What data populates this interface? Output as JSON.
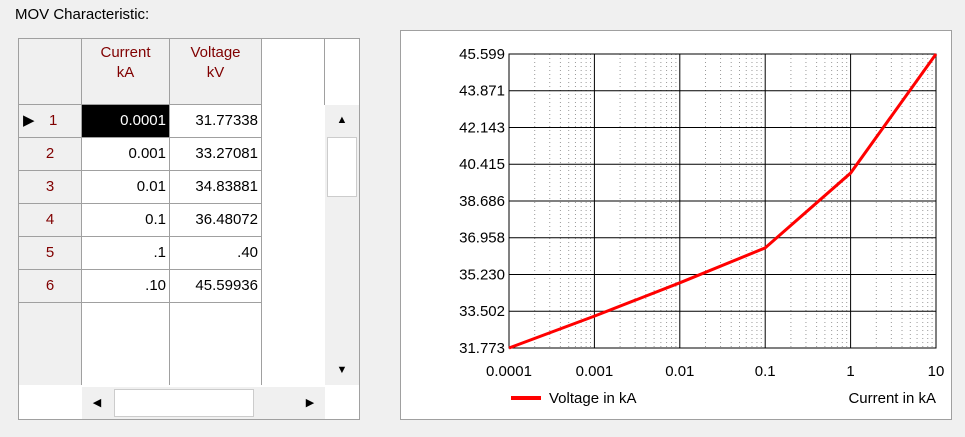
{
  "panel_title": "MOV Characteristic:",
  "table": {
    "headers": [
      [
        "Current",
        "kA"
      ],
      [
        "Voltage",
        "kV"
      ]
    ],
    "row_labels": [
      "1",
      "2",
      "3",
      "4",
      "5",
      "6"
    ],
    "rows": [
      [
        "0.0001",
        "31.77338"
      ],
      [
        "0.001",
        "33.27081"
      ],
      [
        "0.01",
        "34.83881"
      ],
      [
        "0.1",
        "36.48072"
      ],
      [
        "1.",
        "40."
      ],
      [
        "10.",
        "45.59936"
      ]
    ]
  },
  "chart_data": {
    "type": "line",
    "x_label": "Current in kA",
    "x": [
      0.0001,
      0.001,
      0.01,
      0.1,
      1,
      10
    ],
    "series": [
      {
        "name": "Voltage in kA",
        "color": "#ff0000",
        "values": [
          31.77338,
          33.27081,
          34.83881,
          36.48072,
          40,
          45.59936
        ]
      }
    ],
    "log_x": true,
    "xlim": [
      0.0001,
      10
    ],
    "xticks": [
      0.0001,
      0.001,
      0.01,
      0.1,
      1,
      10
    ],
    "ylim": [
      31.773,
      45.599
    ],
    "yticks": [
      31.773,
      33.502,
      {
        "value": 35.23,
        "label": "35.230"
      },
      36.958,
      38.686,
      40.415,
      42.143,
      43.871,
      45.599
    ],
    "grid": true
  }
}
